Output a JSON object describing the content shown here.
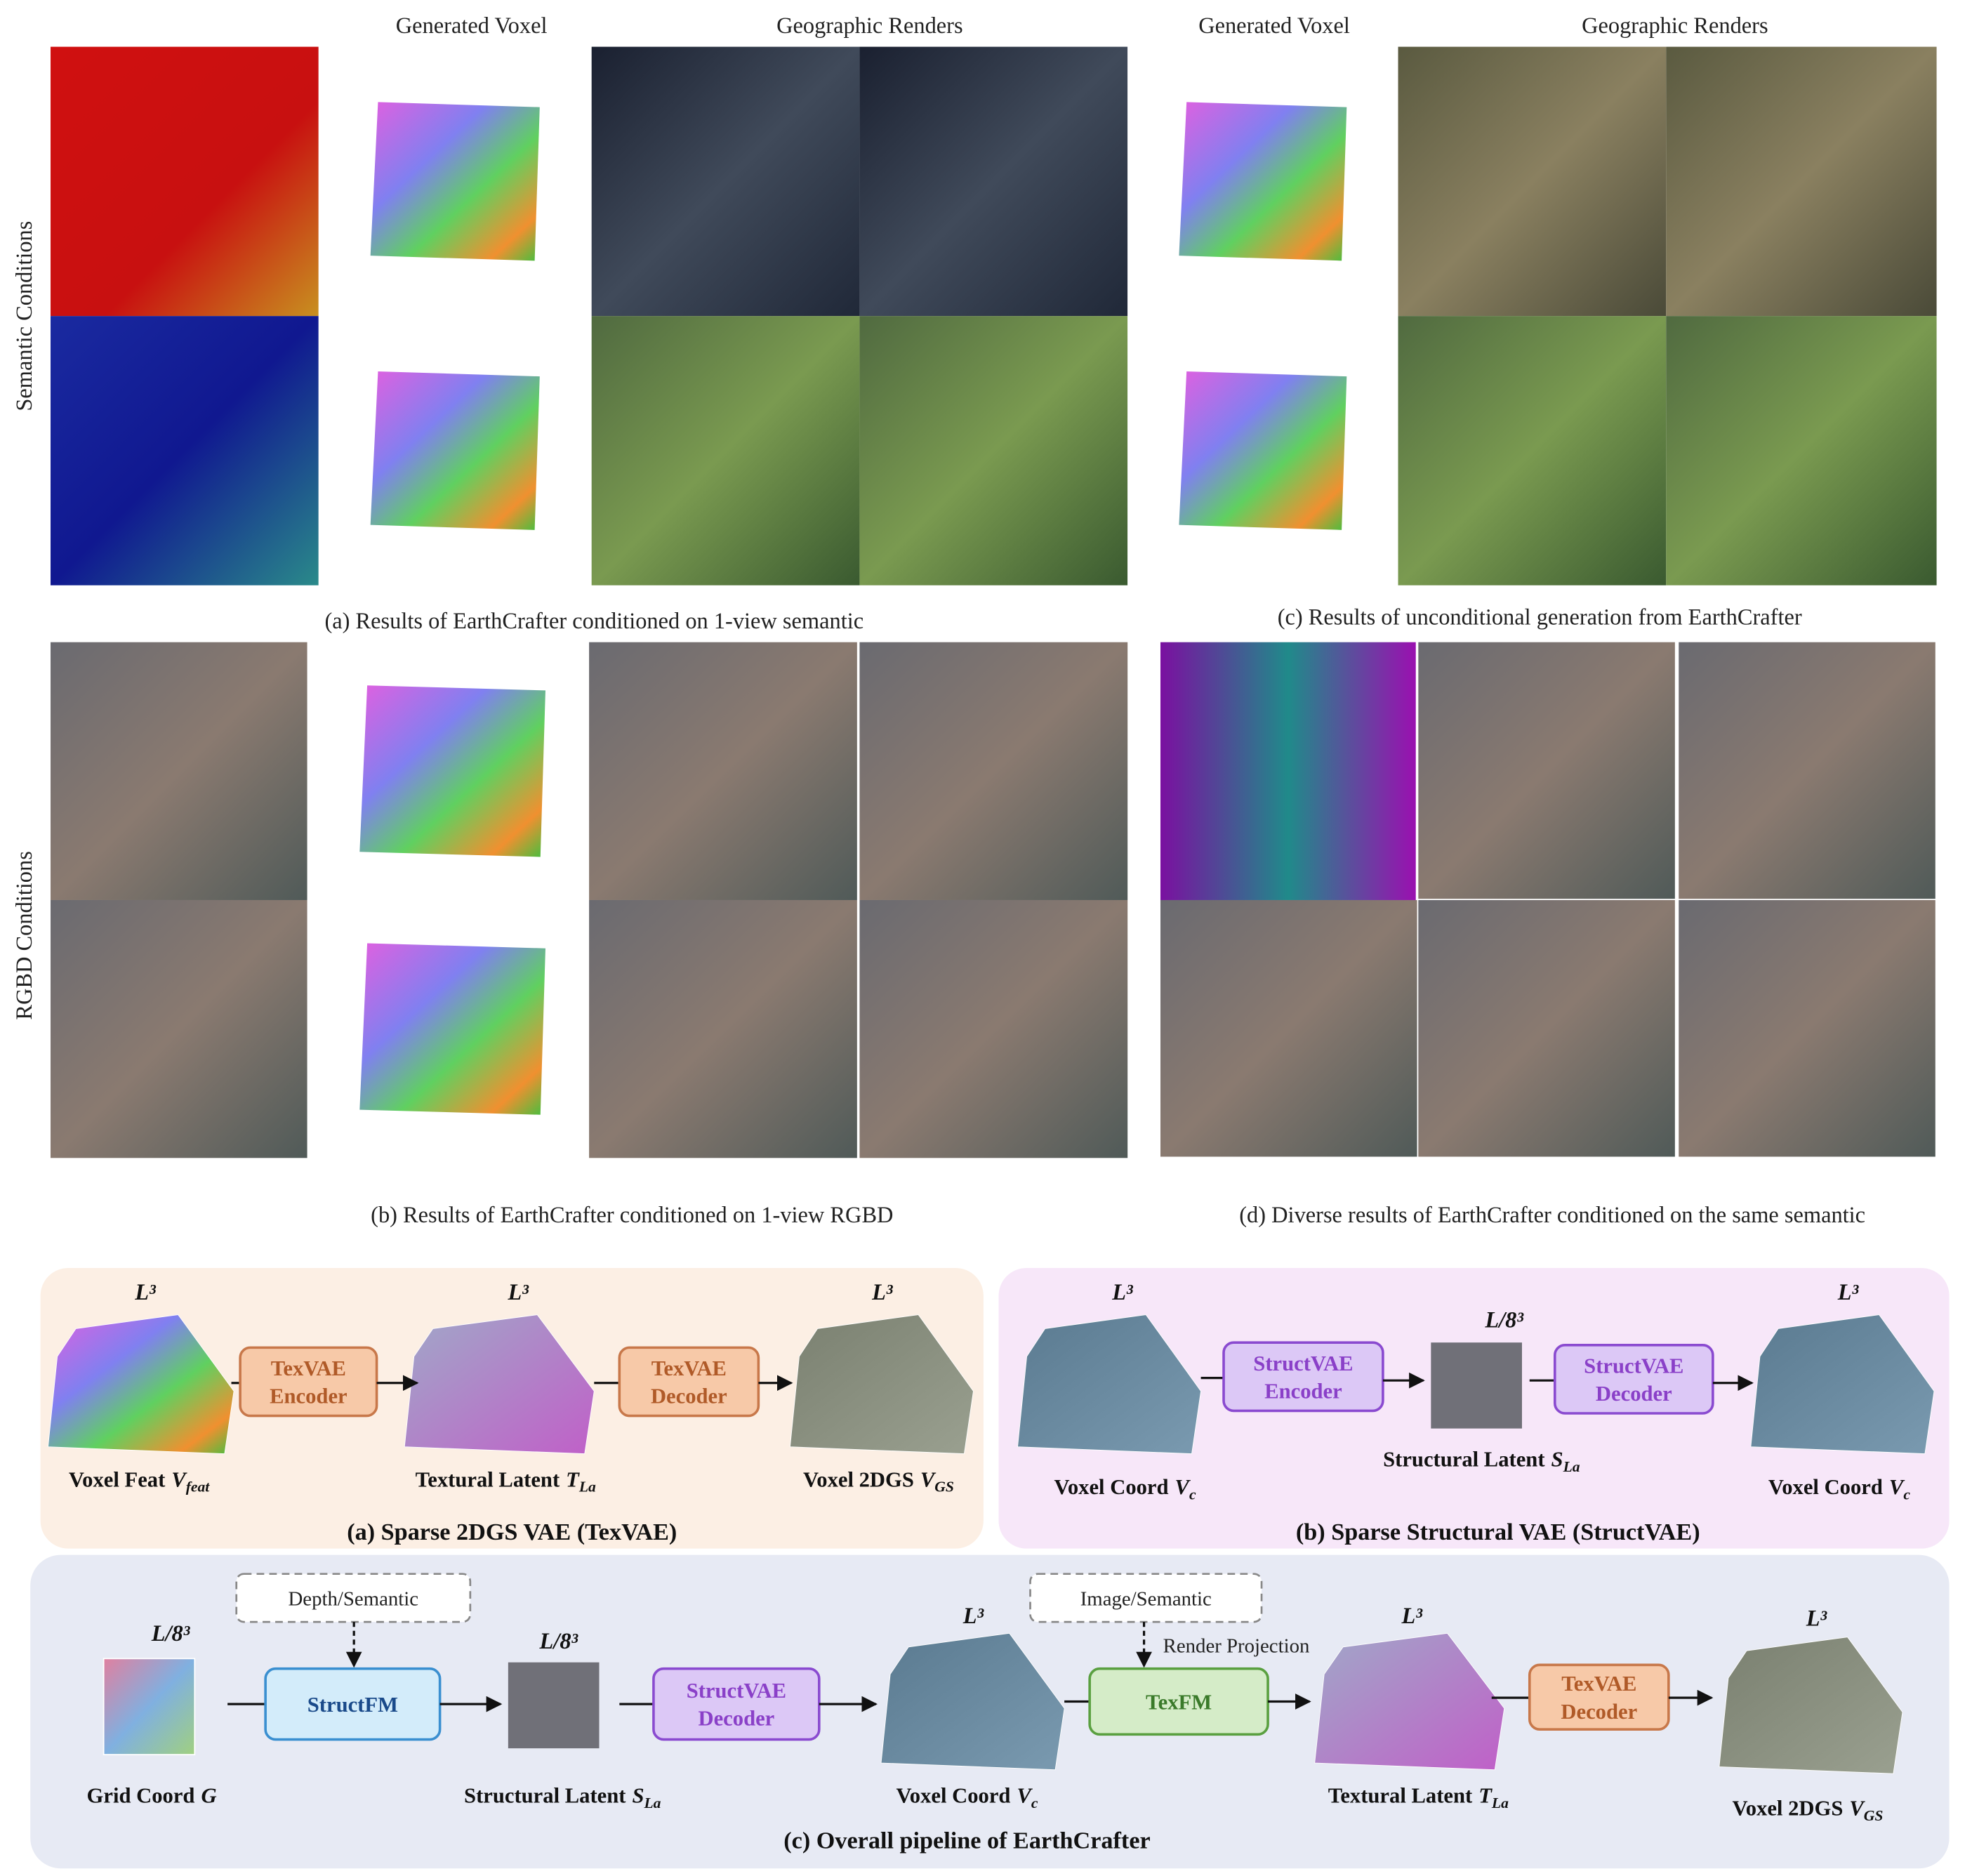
{
  "results": {
    "column_headers": [
      "Generated Voxel",
      "Geographic Renders",
      "Generated Voxel",
      "Geographic Renders"
    ],
    "row_labels": [
      "Semantic Conditions",
      "RGBD Conditions"
    ],
    "captions": [
      "(a) Results of EarthCrafter conditioned on 1-view semantic",
      "(c) Results of unconditional generation from EarthCrafter",
      "(b) Results of EarthCrafter conditioned on 1-view RGBD",
      "(d) Diverse results of EarthCrafter conditioned on the same semantic"
    ]
  },
  "pipeline": {
    "tex_vae": {
      "caption": "(a) Sparse 2DGS VAE (TexVAE)",
      "sizes": [
        "L³",
        "L³",
        "L³"
      ],
      "blocks": [
        [
          "TexVAE",
          "Encoder"
        ],
        [
          "TexVAE",
          "Decoder"
        ]
      ],
      "labels": [
        {
          "text": "Voxel Feat",
          "var": "V",
          "sub": "feat"
        },
        {
          "text": "Textural Latent",
          "var": "T",
          "sub": "La"
        },
        {
          "text": "Voxel 2DGS",
          "var": "V",
          "sub": "GS"
        }
      ]
    },
    "struct_vae": {
      "caption": "(b) Sparse Structural VAE (StructVAE)",
      "sizes": [
        "L³",
        "L/8³",
        "L³"
      ],
      "blocks": [
        [
          "StructVAE",
          "Encoder"
        ],
        [
          "StructVAE",
          "Decoder"
        ]
      ],
      "labels": [
        {
          "text": "Voxel Coord",
          "var": "V",
          "sub": "c"
        },
        {
          "text": "Structural Latent",
          "var": "S",
          "sub": "La"
        },
        {
          "text": "Voxel Coord",
          "var": "V",
          "sub": "c"
        }
      ]
    },
    "overall": {
      "caption": "(c) Overall pipeline of EarthCrafter",
      "conditions": [
        "Depth/Semantic",
        "Image/Semantic"
      ],
      "projection": "Render Projection",
      "sizes": [
        "L/8³",
        "L/8³",
        "L³",
        "L³",
        "L³"
      ],
      "blocks": [
        [
          "StructFM"
        ],
        [
          "StructVAE",
          "Decoder"
        ],
        [
          "TexFM"
        ],
        [
          "TexVAE",
          "Decoder"
        ]
      ],
      "labels": [
        {
          "text": "Grid Coord",
          "var": "G"
        },
        {
          "text": "Structural Latent",
          "var": "S",
          "sub": "La"
        },
        {
          "text": "Voxel Coord",
          "var": "V",
          "sub": "c"
        },
        {
          "text": "Textural Latent",
          "var": "T",
          "sub": "La"
        },
        {
          "text": "Voxel 2DGS",
          "var": "V",
          "sub": "GS"
        }
      ]
    }
  }
}
